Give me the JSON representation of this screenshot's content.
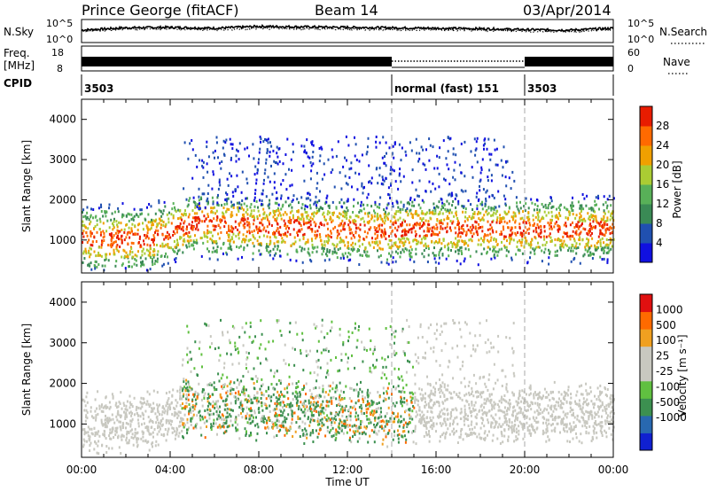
{
  "header": {
    "station": "Prince George (fitACF)",
    "beam": "Beam 14",
    "date": "03/Apr/2014"
  },
  "chart_data": [
    {
      "type": "line",
      "id": "noise",
      "left_label": "N.Sky",
      "left_ticks": [
        "10^5",
        "10^0"
      ],
      "right_ticks": [
        "10^5",
        "10^0"
      ],
      "right_label": "N.Search",
      "ylim_log10": [
        0,
        5
      ],
      "x_hours": [
        0,
        2,
        4,
        6,
        8,
        10,
        12,
        14,
        16,
        18,
        20,
        22,
        24
      ],
      "sky_log10": [
        2.7,
        3.2,
        3.3,
        3.1,
        3.5,
        3.4,
        3.3,
        3.2,
        3.1,
        3.0,
        2.8,
        2.7,
        3.1
      ],
      "search_log10": [
        2.5,
        2.9,
        3.0,
        2.8,
        3.1,
        3.0,
        2.9,
        2.8,
        2.8,
        2.7,
        2.5,
        2.4,
        2.8
      ]
    },
    {
      "type": "area",
      "id": "freq",
      "left_label": "Freq. [MHz]",
      "left_ticks": [
        "18",
        "8"
      ],
      "right_ticks": [
        "60",
        "0"
      ],
      "right_label": "Nave",
      "segments": [
        {
          "start": 0,
          "end": 14,
          "style": "solid"
        },
        {
          "start": 14,
          "end": 20,
          "style": "dotted"
        },
        {
          "start": 20,
          "end": 24,
          "style": "solid"
        }
      ]
    },
    {
      "type": "table",
      "id": "cpid",
      "label": "CPID",
      "segments": [
        {
          "start": 0,
          "end": 14,
          "text": "3503"
        },
        {
          "start": 14,
          "end": 20,
          "text": "normal (fast) 151"
        },
        {
          "start": 20,
          "end": 24,
          "text": "3503"
        }
      ]
    },
    {
      "type": "heatmap",
      "id": "power",
      "ylabel": "Slant Range [km]",
      "yticks": [
        "1000",
        "2000",
        "3000",
        "4000"
      ],
      "ylim": [
        180,
        4500
      ],
      "colorbar_label": "Power [dB]",
      "colorbar_ticks": [
        "4",
        "8",
        "12",
        "16",
        "20",
        "24",
        "28"
      ],
      "colorbar_colors": [
        "#1010e0",
        "#2050b0",
        "#3a8a55",
        "#58b058",
        "#aacc33",
        "#f0a000",
        "#ff6a00",
        "#e81c00"
      ]
    },
    {
      "type": "heatmap",
      "id": "velocity",
      "ylabel": "Slant Range [km]",
      "yticks": [
        "1000",
        "2000",
        "3000",
        "4000"
      ],
      "ylim": [
        180,
        4500
      ],
      "colorbar_label": "Velocity [m s⁻¹]",
      "colorbar_ticks": [
        "1000",
        "500",
        "100",
        "25",
        "-25",
        "-100",
        "-500",
        "-1000"
      ],
      "colorbar_colors": [
        "#1020d0",
        "#2868b0",
        "#3c9050",
        "#60c040",
        "#c8c8c0",
        "#c8c8c0",
        "#f0a020",
        "#ff6a00",
        "#e01010"
      ]
    }
  ],
  "xaxis": {
    "label": "Time UT",
    "ticks": [
      "00:00",
      "04:00",
      "08:00",
      "12:00",
      "16:00",
      "20:00",
      "00:00"
    ],
    "tick_hours": [
      0,
      4,
      8,
      12,
      16,
      20,
      24
    ],
    "xlim": [
      0,
      24
    ],
    "mode_change_hours": [
      14,
      20
    ]
  }
}
